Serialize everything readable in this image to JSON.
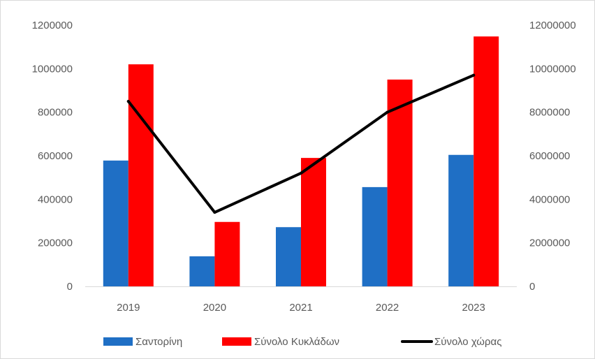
{
  "chart_data": {
    "type": "bar",
    "categories": [
      "2019",
      "2020",
      "2021",
      "2022",
      "2023"
    ],
    "series": [
      {
        "name": "Σαντορίνη",
        "type": "bar",
        "axis": "left",
        "color": "#1F6FC5",
        "values": [
          578000,
          138000,
          272000,
          456000,
          604000
        ]
      },
      {
        "name": "Σύνολο Κυκλάδων",
        "type": "bar",
        "axis": "left",
        "color": "#FF0000",
        "values": [
          1020000,
          296000,
          590000,
          950000,
          1148000
        ]
      },
      {
        "name": "Σύνολο χώρας",
        "type": "line",
        "axis": "right",
        "color": "#000000",
        "values": [
          8500000,
          3400000,
          5200000,
          8000000,
          9700000
        ]
      }
    ],
    "y_left": {
      "ylim": [
        0,
        1200000
      ],
      "ticks": [
        "0",
        "200000",
        "400000",
        "600000",
        "800000",
        "1000000",
        "1200000"
      ]
    },
    "y_right": {
      "ylim": [
        0,
        12000000
      ],
      "ticks": [
        "0",
        "2000000",
        "4000000",
        "6000000",
        "8000000",
        "10000000",
        "12000000"
      ]
    },
    "grid": false,
    "legend": "bottom"
  }
}
